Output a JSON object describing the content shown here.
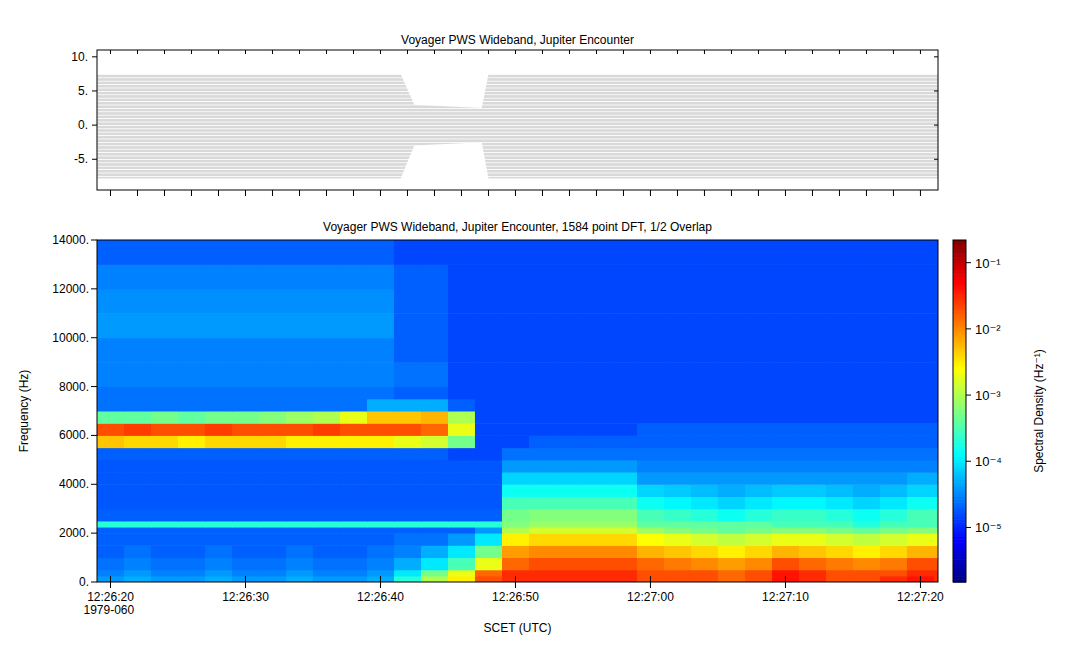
{
  "chart_data": [
    {
      "type": "area",
      "title": "Voyager PWS Wideband, Jupiter Encounter",
      "x": [
        19.0,
        41.5,
        42.5,
        47.5,
        48.0,
        81.3
      ],
      "series": [
        {
          "values": [
            7.5,
            7.5,
            3,
            2.5,
            7.5,
            7.5
          ],
          "color": "#d9d9d9"
        },
        {
          "values": [
            -7.8,
            -7.8,
            -3,
            -2.5,
            -7.8,
            -7.8
          ],
          "color": "#d9d9d9"
        }
      ],
      "xlim": [
        19.0,
        81.3
      ],
      "ylim": [
        -9.5,
        11
      ],
      "xticks": [
        20,
        22,
        24,
        26,
        28,
        30,
        32,
        34,
        36,
        38,
        40,
        42,
        44,
        46,
        48,
        50,
        52,
        54,
        56,
        58,
        60,
        62,
        64,
        66,
        68,
        70,
        72,
        74,
        76,
        78,
        80
      ],
      "yticks": [
        {
          "value": -5,
          "label": "-5."
        },
        {
          "value": 0,
          "label": "0."
        },
        {
          "value": 5,
          "label": "5."
        },
        {
          "value": 10,
          "label": "10."
        }
      ],
      "tick_labels": "y"
    },
    {
      "type": "heatmap",
      "title": "Voyager PWS Wideband, Jupiter Encounter, 1584 point DFT, 1/2 Overlap",
      "x_label": "SCET (UTC)",
      "y_label": "Frequency (Hz)",
      "date_label": "1979-060",
      "xlim": [
        19.0,
        81.3
      ],
      "ylim": [
        0,
        14000
      ],
      "xticks": [
        {
          "value": 20,
          "label": "12:26:20"
        },
        {
          "value": 30,
          "label": "12:26:30"
        },
        {
          "value": 40,
          "label": "12:26:40"
        },
        {
          "value": 50,
          "label": "12:26:50"
        },
        {
          "value": 60,
          "label": "12:27:00"
        },
        {
          "value": 70,
          "label": "12:27:10"
        },
        {
          "value": 80,
          "label": "12:27:20"
        }
      ],
      "yticks": [
        {
          "value": 0,
          "label": "0."
        },
        {
          "value": 2000,
          "label": "2000."
        },
        {
          "value": 4000,
          "label": "4000."
        },
        {
          "value": 6000,
          "label": "6000."
        },
        {
          "value": 8000,
          "label": "8000."
        },
        {
          "value": 10000,
          "label": "10000."
        },
        {
          "value": 12000,
          "label": "12000."
        },
        {
          "value": 14000,
          "label": "14000."
        }
      ],
      "x_edges": [
        19,
        21,
        23,
        25,
        27,
        29,
        31,
        33,
        35,
        37,
        39,
        41,
        43,
        45,
        47,
        49,
        51,
        53,
        55,
        57,
        59,
        61,
        63,
        65,
        67,
        69,
        71,
        73,
        75,
        77,
        79,
        81,
        81.3
      ],
      "y_edges": [
        0,
        250,
        500,
        1000,
        1500,
        2000,
        2250,
        2500,
        3000,
        3500,
        4000,
        4500,
        5000,
        5500,
        6000,
        6500,
        7000,
        7500,
        8000,
        9000,
        10000,
        11000,
        12000,
        13000,
        14000
      ],
      "cells": [
        [
          4e-05,
          5e-05,
          4e-05,
          4e-05,
          5e-05,
          4e-05,
          4e-05,
          5e-05,
          4e-05,
          4e-05,
          5e-05,
          0.0002,
          0.001,
          0.003,
          0.02,
          0.03,
          0.03,
          0.03,
          0.03,
          0.03,
          0.02,
          0.02,
          0.02,
          0.015,
          0.02,
          0.04,
          0.03,
          0.02,
          0.02,
          0.03,
          0.04,
          0.03
        ],
        [
          3e-05,
          4e-05,
          3e-05,
          3e-05,
          4e-05,
          3e-05,
          3e-05,
          4e-05,
          3e-05,
          3e-05,
          4e-05,
          0.0001,
          0.0005,
          0.002,
          0.015,
          0.03,
          0.03,
          0.03,
          0.03,
          0.03,
          0.02,
          0.02,
          0.02,
          0.015,
          0.02,
          0.04,
          0.03,
          0.02,
          0.02,
          0.02,
          0.03,
          0.03
        ],
        [
          2.5e-05,
          3e-05,
          2.5e-05,
          2.5e-05,
          3e-05,
          2.5e-05,
          2.5e-05,
          3e-05,
          2.5e-05,
          2.5e-05,
          3e-05,
          5e-05,
          0.0001,
          0.0003,
          0.002,
          0.015,
          0.02,
          0.02,
          0.02,
          0.02,
          0.015,
          0.012,
          0.01,
          0.008,
          0.01,
          0.02,
          0.015,
          0.012,
          0.01,
          0.012,
          0.02,
          0.02
        ],
        [
          2e-05,
          2.5e-05,
          2e-05,
          2e-05,
          2.5e-05,
          2e-05,
          2e-05,
          2.5e-05,
          2e-05,
          2e-05,
          2.5e-05,
          3e-05,
          5e-05,
          0.0001,
          0.0005,
          0.008,
          0.01,
          0.01,
          0.01,
          0.01,
          0.006,
          0.005,
          0.004,
          0.003,
          0.004,
          0.006,
          0.005,
          0.004,
          0.003,
          0.004,
          0.006,
          0.006
        ],
        [
          2e-05,
          2e-05,
          2e-05,
          2e-05,
          2e-05,
          2e-05,
          2e-05,
          2e-05,
          2e-05,
          2e-05,
          2e-05,
          2.5e-05,
          2.5e-05,
          4e-05,
          0.0001,
          0.003,
          0.004,
          0.004,
          0.004,
          0.004,
          0.0025,
          0.002,
          0.0015,
          0.0012,
          0.0015,
          0.002,
          0.002,
          0.0015,
          0.0012,
          0.0015,
          0.002,
          0.002
        ],
        [
          2e-05,
          2e-05,
          2e-05,
          2e-05,
          2e-05,
          2e-05,
          2e-05,
          2e-05,
          2e-05,
          2e-05,
          2e-05,
          2e-05,
          2e-05,
          2e-05,
          4e-05,
          0.001,
          0.0015,
          0.0015,
          0.0015,
          0.0015,
          0.0008,
          0.0006,
          0.0005,
          0.0004,
          0.0005,
          0.0006,
          0.0006,
          0.0005,
          0.0004,
          0.0005,
          0.0006,
          0.0006
        ],
        [
          0.0002,
          0.0002,
          0.0002,
          0.0002,
          0.0002,
          0.0002,
          0.0002,
          0.0002,
          0.0002,
          0.0002,
          0.0002,
          0.0002,
          0.0002,
          0.0002,
          0.0002,
          0.0006,
          0.0008,
          0.0008,
          0.0008,
          0.0008,
          0.0004,
          0.0004,
          0.0004,
          0.0004,
          0.0004,
          0.0003,
          0.0003,
          0.0003,
          0.0002,
          0.0003,
          0.0003,
          0.0003
        ],
        [
          2e-05,
          2e-05,
          2e-05,
          2e-05,
          2e-05,
          2e-05,
          2e-05,
          2e-05,
          2e-05,
          2e-05,
          2e-05,
          2e-05,
          2e-05,
          2e-05,
          2e-05,
          0.0005,
          0.0006,
          0.0006,
          0.0006,
          0.0006,
          0.0003,
          0.00025,
          0.0002,
          0.00015,
          0.0002,
          0.00025,
          0.00025,
          0.0002,
          0.00015,
          0.0002,
          0.0003,
          0.0003
        ],
        [
          1.8e-05,
          1.8e-05,
          1.8e-05,
          1.8e-05,
          1.8e-05,
          1.8e-05,
          1.8e-05,
          1.8e-05,
          1.8e-05,
          1.8e-05,
          1.8e-05,
          1.8e-05,
          1.8e-05,
          1.8e-05,
          1.8e-05,
          0.0003,
          0.0003,
          0.0003,
          0.0003,
          0.0003,
          0.00015,
          0.00012,
          0.0001,
          8e-05,
          0.0001,
          0.00012,
          0.00012,
          0.0001,
          8e-05,
          0.0001,
          0.00015,
          0.00015
        ],
        [
          1.8e-05,
          1.8e-05,
          1.8e-05,
          1.8e-05,
          1.8e-05,
          1.8e-05,
          1.8e-05,
          1.8e-05,
          1.8e-05,
          1.8e-05,
          1.8e-05,
          1.8e-05,
          1.8e-05,
          1.8e-05,
          1.8e-05,
          0.00015,
          0.00015,
          0.00015,
          0.00015,
          0.00015,
          8e-05,
          7e-05,
          6e-05,
          5e-05,
          6e-05,
          7e-05,
          7e-05,
          6e-05,
          5e-05,
          6e-05,
          8e-05,
          8e-05
        ],
        [
          1.8e-05,
          1.8e-05,
          1.8e-05,
          1.8e-05,
          1.8e-05,
          1.8e-05,
          1.8e-05,
          1.8e-05,
          1.8e-05,
          1.8e-05,
          1.8e-05,
          1.8e-05,
          1.8e-05,
          1.8e-05,
          1.8e-05,
          8e-05,
          8e-05,
          8e-05,
          8e-05,
          8e-05,
          4e-05,
          4e-05,
          4e-05,
          4e-05,
          4e-05,
          4e-05,
          4e-05,
          4e-05,
          4e-05,
          4e-05,
          5e-05,
          5e-05
        ],
        [
          1.8e-05,
          1.8e-05,
          1.8e-05,
          1.8e-05,
          1.8e-05,
          1.8e-05,
          1.8e-05,
          1.8e-05,
          1.8e-05,
          1.8e-05,
          1.8e-05,
          1.8e-05,
          1.8e-05,
          1.8e-05,
          1.8e-05,
          4e-05,
          4e-05,
          4e-05,
          4e-05,
          4e-05,
          3e-05,
          3e-05,
          3e-05,
          3e-05,
          3e-05,
          3e-05,
          3e-05,
          3e-05,
          3e-05,
          3e-05,
          3e-05,
          3e-05
        ],
        [
          2e-05,
          2e-05,
          2e-05,
          2e-05,
          2e-05,
          2e-05,
          2e-05,
          2e-05,
          2e-05,
          2e-05,
          2e-05,
          2e-05,
          2e-05,
          1.5e-05,
          1.5e-05,
          2.5e-05,
          2.5e-05,
          2.5e-05,
          2.5e-05,
          2.5e-05,
          2.5e-05,
          2.5e-05,
          2.5e-05,
          2.5e-05,
          2.5e-05,
          2.5e-05,
          2.5e-05,
          2.5e-05,
          2.5e-05,
          2.5e-05,
          2.5e-05,
          2.5e-05
        ],
        [
          0.005,
          0.004,
          0.004,
          0.003,
          0.004,
          0.004,
          0.004,
          0.003,
          0.003,
          0.003,
          0.003,
          0.002,
          0.0015,
          0.0005,
          1.5e-05,
          1.5e-05,
          2e-05,
          2e-05,
          2e-05,
          2e-05,
          2e-05,
          2e-05,
          2e-05,
          2e-05,
          2e-05,
          2e-05,
          2e-05,
          2e-05,
          2e-05,
          2e-05,
          2e-05,
          2e-05
        ],
        [
          0.02,
          0.025,
          0.02,
          0.02,
          0.025,
          0.02,
          0.02,
          0.02,
          0.025,
          0.02,
          0.02,
          0.02,
          0.015,
          0.002,
          1.5e-05,
          1.5e-05,
          1.5e-05,
          1.5e-05,
          1.5e-05,
          1.5e-05,
          2e-05,
          2e-05,
          2e-05,
          2e-05,
          2e-05,
          2e-05,
          2e-05,
          2e-05,
          2e-05,
          2e-05,
          2e-05,
          2e-05
        ],
        [
          0.0004,
          0.0004,
          0.0005,
          0.0004,
          0.0005,
          0.0005,
          0.0006,
          0.0008,
          0.001,
          0.002,
          0.005,
          0.005,
          0.006,
          0.001,
          1.5e-05,
          1.5e-05,
          1.5e-05,
          1.5e-05,
          1.5e-05,
          1.5e-05,
          1.5e-05,
          1.5e-05,
          1.5e-05,
          1.5e-05,
          1.5e-05,
          1.5e-05,
          1.5e-05,
          1.5e-05,
          1.5e-05,
          1.5e-05,
          1.5e-05,
          1.5e-05
        ],
        [
          2.5e-05,
          2.5e-05,
          2.5e-05,
          2.5e-05,
          2.5e-05,
          2.5e-05,
          2.5e-05,
          2.5e-05,
          2.5e-05,
          2.5e-05,
          5e-05,
          5e-05,
          5e-05,
          2e-05,
          1.5e-05,
          1.5e-05,
          1.5e-05,
          1.5e-05,
          1.5e-05,
          1.5e-05,
          1.5e-05,
          1.5e-05,
          1.5e-05,
          1.5e-05,
          1.5e-05,
          1.5e-05,
          1.5e-05,
          1.5e-05,
          1.5e-05,
          1.5e-05,
          1.5e-05,
          1.5e-05
        ],
        [
          2.5e-05,
          2.5e-05,
          2.5e-05,
          2.5e-05,
          2.5e-05,
          2.5e-05,
          2.5e-05,
          2.5e-05,
          2.5e-05,
          2.5e-05,
          2.5e-05,
          2e-05,
          2e-05,
          1.5e-05,
          1.5e-05,
          1.5e-05,
          1.5e-05,
          1.5e-05,
          1.5e-05,
          1.5e-05,
          1.5e-05,
          1.5e-05,
          1.5e-05,
          1.5e-05,
          1.5e-05,
          1.5e-05,
          1.5e-05,
          1.5e-05,
          1.5e-05,
          1.5e-05,
          1.5e-05,
          1.5e-05
        ],
        [
          3e-05,
          3e-05,
          3e-05,
          3e-05,
          3e-05,
          3e-05,
          3e-05,
          3e-05,
          3e-05,
          3e-05,
          3e-05,
          2.5e-05,
          2.5e-05,
          1.5e-05,
          1.5e-05,
          1.5e-05,
          1.5e-05,
          1.5e-05,
          1.5e-05,
          1.5e-05,
          1.5e-05,
          1.5e-05,
          1.5e-05,
          1.5e-05,
          1.5e-05,
          1.5e-05,
          1.5e-05,
          1.5e-05,
          1.5e-05,
          1.5e-05,
          1.5e-05,
          1.5e-05
        ],
        [
          3e-05,
          3e-05,
          3e-05,
          3e-05,
          3e-05,
          3e-05,
          3e-05,
          3e-05,
          3e-05,
          3e-05,
          3e-05,
          2e-05,
          2e-05,
          1.5e-05,
          1.5e-05,
          1.5e-05,
          1.5e-05,
          1.5e-05,
          1.5e-05,
          1.5e-05,
          1.5e-05,
          1.5e-05,
          1.5e-05,
          1.5e-05,
          1.5e-05,
          1.5e-05,
          1.5e-05,
          1.5e-05,
          1.5e-05,
          1.5e-05,
          1.5e-05,
          1.5e-05
        ],
        [
          4e-05,
          4e-05,
          4e-05,
          4e-05,
          4e-05,
          4e-05,
          4e-05,
          4e-05,
          4e-05,
          4e-05,
          4e-05,
          2e-05,
          2e-05,
          1.5e-05,
          1.5e-05,
          1.5e-05,
          1.5e-05,
          1.5e-05,
          1.5e-05,
          1.5e-05,
          1.5e-05,
          1.5e-05,
          1.5e-05,
          1.5e-05,
          1.5e-05,
          1.5e-05,
          1.5e-05,
          1.5e-05,
          1.5e-05,
          1.5e-05,
          1.5e-05,
          1.5e-05
        ],
        [
          3.5e-05,
          3.5e-05,
          3.5e-05,
          3.5e-05,
          3.5e-05,
          3.5e-05,
          3.5e-05,
          3.5e-05,
          3.5e-05,
          3.5e-05,
          3.5e-05,
          2e-05,
          2e-05,
          1.5e-05,
          1.5e-05,
          1.5e-05,
          1.5e-05,
          1.5e-05,
          1.5e-05,
          1.5e-05,
          1.5e-05,
          1.5e-05,
          1.5e-05,
          1.5e-05,
          1.5e-05,
          1.5e-05,
          1.5e-05,
          1.5e-05,
          1.5e-05,
          1.5e-05,
          1.5e-05,
          1.5e-05
        ],
        [
          3e-05,
          3e-05,
          3e-05,
          3e-05,
          3e-05,
          3e-05,
          3e-05,
          3e-05,
          3e-05,
          3e-05,
          3e-05,
          2e-05,
          2e-05,
          1.5e-05,
          1.5e-05,
          1.5e-05,
          1.5e-05,
          1.5e-05,
          1.5e-05,
          1.5e-05,
          1.5e-05,
          1.5e-05,
          1.5e-05,
          1.5e-05,
          1.5e-05,
          1.5e-05,
          1.5e-05,
          1.5e-05,
          1.5e-05,
          1.5e-05,
          1.5e-05,
          1.5e-05
        ],
        [
          2e-05,
          2e-05,
          2e-05,
          2e-05,
          2e-05,
          2e-05,
          2e-05,
          2e-05,
          2e-05,
          2e-05,
          2e-05,
          1.5e-05,
          1.5e-05,
          1.5e-05,
          1.5e-05,
          1.5e-05,
          1.5e-05,
          1.5e-05,
          1.5e-05,
          1.5e-05,
          1.5e-05,
          1.5e-05,
          1.5e-05,
          1.5e-05,
          1.5e-05,
          1.5e-05,
          1.5e-05,
          1.5e-05,
          1.5e-05,
          1.5e-05,
          1.5e-05,
          1.5e-05
        ]
      ],
      "colorbar": {
        "label": "Spectral Density (Hz⁻¹)",
        "range": [
          1.5e-06,
          0.22
        ],
        "log": true,
        "ticks": [
          {
            "value": 1e-05,
            "label": "10⁻⁵"
          },
          {
            "value": 0.0001,
            "label": "10⁻⁴"
          },
          {
            "value": 0.001,
            "label": "10⁻³"
          },
          {
            "value": 0.01,
            "label": "10⁻²"
          },
          {
            "value": 0.1,
            "label": "10⁻¹"
          }
        ]
      }
    }
  ]
}
